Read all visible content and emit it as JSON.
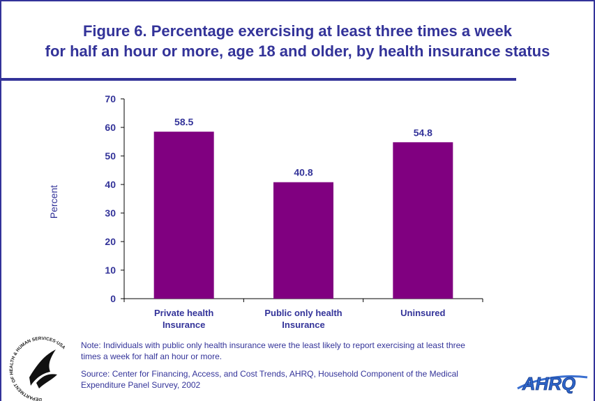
{
  "chart_data": {
    "type": "bar",
    "title": "Figure 6. Percentage exercising at least three times a week\nfor half an hour or more, age 18 and older, by health insurance status",
    "y_label": "Percent",
    "categories": [
      "Private health\nInsurance",
      "Public only health\nInsurance",
      "Uninsured"
    ],
    "values": [
      58.5,
      40.8,
      54.8
    ],
    "color": "#800080",
    "ylim": [
      0,
      70
    ],
    "yticks": [
      0,
      10,
      20,
      30,
      40,
      50,
      60,
      70
    ],
    "note": "Note: Individuals with public only health insurance were the least likely to report exercising at least three\ntimes a week for half an hour or more.",
    "source": "Source: Center for Financing, Access, and Cost Trends, AHRQ, Household Component of the Medical\nExpenditure Panel Survey, 2002",
    "logo_text": "AHRQ",
    "seal_text": "DEPARTMENT OF HEALTH & HUMAN SERVICES·USA"
  }
}
